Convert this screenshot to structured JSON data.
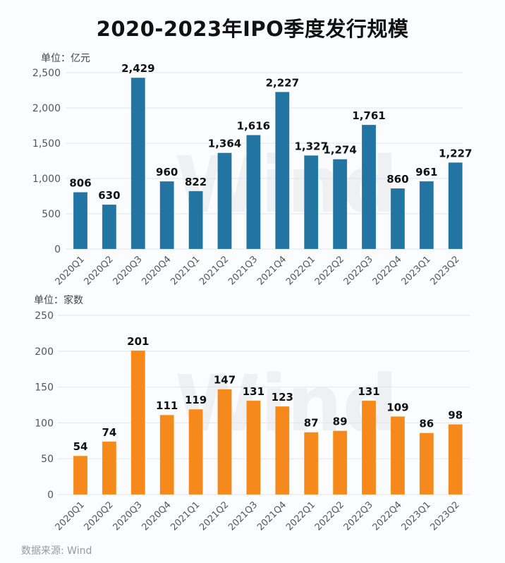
{
  "title": "2020-2023年IPO季度发行规模",
  "source": "数据来源: Wind",
  "watermark": "Wind",
  "colors": {
    "amount": "#2275a2",
    "count": "#f5891b",
    "grid": "#e3e5e8"
  },
  "chart_data": [
    {
      "type": "bar",
      "title": "2020-2023年IPO季度发行规模",
      "unit_label": "单位：亿元",
      "xlabel": "",
      "ylabel": "单位：亿元",
      "categories": [
        "2020Q1",
        "2020Q2",
        "2020Q3",
        "2020Q4",
        "2021Q1",
        "2021Q2",
        "2021Q3",
        "2021Q4",
        "2022Q1",
        "2022Q2",
        "2022Q3",
        "2022Q4",
        "2023Q1",
        "2023Q2"
      ],
      "values": [
        806,
        630,
        2429,
        960,
        822,
        1364,
        1616,
        2227,
        1327,
        1274,
        1761,
        860,
        961,
        1227
      ],
      "value_labels": [
        "806",
        "630",
        "2,429",
        "960",
        "822",
        "1,364",
        "1,616",
        "2,227",
        "1,327",
        "1,274",
        "1,761",
        "860",
        "961",
        "1,227"
      ],
      "ylim": [
        0,
        2500
      ],
      "yticks": [
        0,
        500,
        1000,
        1500,
        2000,
        2500
      ],
      "ytick_labels": [
        "0",
        "500",
        "1,000",
        "1,500",
        "2,000",
        "2,500"
      ],
      "grid": true,
      "legend": "none"
    },
    {
      "type": "bar",
      "unit_label": "单位：家数",
      "xlabel": "",
      "ylabel": "单位：家数",
      "categories": [
        "2020Q1",
        "2020Q2",
        "2020Q3",
        "2020Q4",
        "2021Q1",
        "2021Q2",
        "2021Q3",
        "2021Q4",
        "2022Q1",
        "2022Q2",
        "2022Q3",
        "2022Q4",
        "2023Q1",
        "2023Q2"
      ],
      "values": [
        54,
        74,
        201,
        111,
        119,
        147,
        131,
        123,
        87,
        89,
        131,
        109,
        86,
        98
      ],
      "value_labels": [
        "54",
        "74",
        "201",
        "111",
        "119",
        "147",
        "131",
        "123",
        "87",
        "89",
        "131",
        "109",
        "86",
        "98"
      ],
      "ylim": [
        0,
        250
      ],
      "yticks": [
        0,
        50,
        100,
        150,
        200,
        250
      ],
      "ytick_labels": [
        "0",
        "50",
        "100",
        "150",
        "200",
        "250"
      ],
      "grid": true,
      "legend": "none"
    }
  ]
}
